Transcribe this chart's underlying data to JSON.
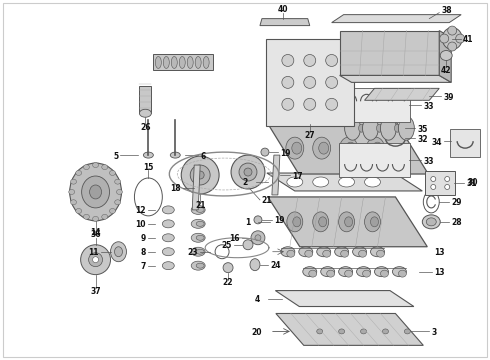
{
  "bg_color": "#ffffff",
  "edge_color": "#555555",
  "label_color": "#111111",
  "fig_width": 4.9,
  "fig_height": 3.6,
  "dpi": 100
}
